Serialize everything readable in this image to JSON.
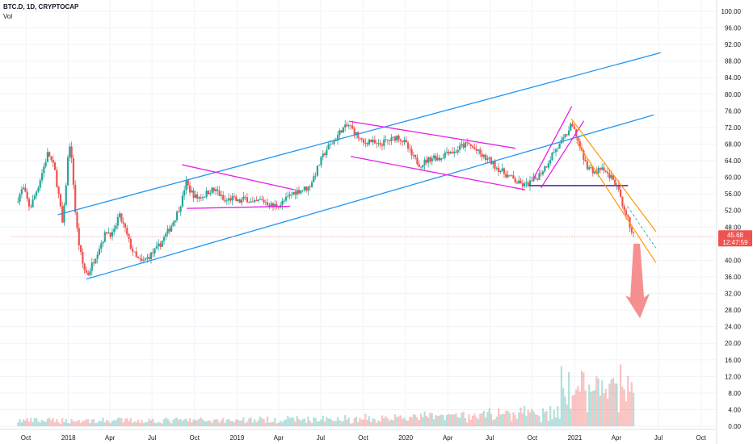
{
  "legend": {
    "symbol": "BTC.D, 1D, CRYPTOCAP",
    "volume_label": "Vol"
  },
  "price_tag": {
    "value": "45.68",
    "countdown": "12:47:59"
  },
  "colors": {
    "up": "#26a69a",
    "down": "#ef5350",
    "channel": "#2196f3",
    "pattern": "#e91ee8",
    "falling_channel": "#ff9800",
    "support": "#673ab7",
    "arrow": "#f47c7c",
    "price_tag": "#ef5350"
  },
  "chart_data": {
    "type": "candlestick",
    "title": "",
    "x_axis_labels": [
      "Oct",
      "2018",
      "Apr",
      "Jul",
      "Oct",
      "2019",
      "Apr",
      "Jul",
      "Oct",
      "2020",
      "Apr",
      "Jul",
      "Oct",
      "2021",
      "Apr",
      "Jul",
      "Oct"
    ],
    "x_axis_dates": [
      "2017-10-01",
      "2018-01-01",
      "2018-04-01",
      "2018-07-01",
      "2018-10-01",
      "2019-01-01",
      "2019-04-01",
      "2019-07-01",
      "2019-10-01",
      "2020-01-01",
      "2020-04-01",
      "2020-07-01",
      "2020-10-01",
      "2021-01-01",
      "2021-04-01",
      "2021-07-01",
      "2021-10-01"
    ],
    "y_axis_labels": [
      "100.00",
      "96.00",
      "92.00",
      "88.00",
      "84.00",
      "80.00",
      "76.00",
      "72.00",
      "68.00",
      "64.00",
      "60.00",
      "56.00",
      "52.00",
      "48.00",
      "44.00",
      "40.00",
      "36.00",
      "32.00",
      "28.00",
      "24.00",
      "20.00",
      "16.00",
      "12.00",
      "8.00",
      "4.00",
      "0.00"
    ],
    "y_range": [
      0,
      100
    ],
    "last_value": 45.68,
    "price_path": [
      [
        "2017-09-10",
        54.0
      ],
      [
        "2017-09-25",
        57.5
      ],
      [
        "2017-10-10",
        52.5
      ],
      [
        "2017-10-28",
        58.0
      ],
      [
        "2017-11-18",
        66.0
      ],
      [
        "2017-12-02",
        62.0
      ],
      [
        "2017-12-12",
        55.0
      ],
      [
        "2017-12-20",
        48.0
      ],
      [
        "2017-12-28",
        60.0
      ],
      [
        "2018-01-03",
        69.0
      ],
      [
        "2018-01-10",
        62.0
      ],
      [
        "2018-01-17",
        50.0
      ],
      [
        "2018-01-25",
        43.0
      ],
      [
        "2018-02-03",
        38.0
      ],
      [
        "2018-02-12",
        36.5
      ],
      [
        "2018-02-25",
        40.0
      ],
      [
        "2018-03-10",
        43.5
      ],
      [
        "2018-03-25",
        47.0
      ],
      [
        "2018-04-08",
        46.0
      ],
      [
        "2018-04-20",
        51.0
      ],
      [
        "2018-05-02",
        48.0
      ],
      [
        "2018-05-15",
        43.5
      ],
      [
        "2018-05-28",
        40.5
      ],
      [
        "2018-06-10",
        39.5
      ],
      [
        "2018-06-25",
        41.0
      ],
      [
        "2018-07-10",
        42.5
      ],
      [
        "2018-07-25",
        45.0
      ],
      [
        "2018-08-10",
        48.0
      ],
      [
        "2018-08-25",
        51.5
      ],
      [
        "2018-09-05",
        55.0
      ],
      [
        "2018-09-12",
        59.0
      ],
      [
        "2018-09-20",
        57.0
      ],
      [
        "2018-10-05",
        55.0
      ],
      [
        "2018-10-20",
        55.5
      ],
      [
        "2018-11-05",
        57.0
      ],
      [
        "2018-11-20",
        56.5
      ],
      [
        "2018-12-05",
        54.0
      ],
      [
        "2018-12-20",
        55.0
      ],
      [
        "2019-01-05",
        54.0
      ],
      [
        "2019-01-20",
        55.0
      ],
      [
        "2019-02-05",
        53.5
      ],
      [
        "2019-02-20",
        54.5
      ],
      [
        "2019-03-05",
        54.0
      ],
      [
        "2019-03-20",
        53.0
      ],
      [
        "2019-04-05",
        53.5
      ],
      [
        "2019-04-20",
        55.0
      ],
      [
        "2019-05-05",
        56.5
      ],
      [
        "2019-05-20",
        57.0
      ],
      [
        "2019-06-05",
        57.5
      ],
      [
        "2019-06-20",
        61.0
      ],
      [
        "2019-07-01",
        64.0
      ],
      [
        "2019-07-15",
        67.0
      ],
      [
        "2019-08-01",
        69.0
      ],
      [
        "2019-08-15",
        71.5
      ],
      [
        "2019-09-01",
        72.5
      ],
      [
        "2019-09-15",
        70.5
      ],
      [
        "2019-10-01",
        68.0
      ],
      [
        "2019-10-15",
        69.0
      ],
      [
        "2019-11-01",
        67.5
      ],
      [
        "2019-11-15",
        68.5
      ],
      [
        "2019-12-01",
        69.0
      ],
      [
        "2019-12-15",
        70.0
      ],
      [
        "2020-01-01",
        68.0
      ],
      [
        "2020-01-15",
        65.0
      ],
      [
        "2020-02-01",
        63.0
      ],
      [
        "2020-02-15",
        64.0
      ],
      [
        "2020-03-01",
        65.0
      ],
      [
        "2020-03-15",
        64.5
      ],
      [
        "2020-04-01",
        66.5
      ],
      [
        "2020-04-15",
        66.0
      ],
      [
        "2020-05-01",
        67.5
      ],
      [
        "2020-05-15",
        68.0
      ],
      [
        "2020-06-01",
        66.5
      ],
      [
        "2020-06-15",
        65.0
      ],
      [
        "2020-07-01",
        64.0
      ],
      [
        "2020-07-15",
        62.5
      ],
      [
        "2020-08-01",
        61.0
      ],
      [
        "2020-08-15",
        60.0
      ],
      [
        "2020-09-01",
        58.5
      ],
      [
        "2020-09-15",
        58.0
      ],
      [
        "2020-10-01",
        59.0
      ],
      [
        "2020-10-15",
        60.5
      ],
      [
        "2020-11-01",
        63.0
      ],
      [
        "2020-11-15",
        66.0
      ],
      [
        "2020-12-01",
        68.0
      ],
      [
        "2020-12-15",
        70.5
      ],
      [
        "2020-12-25",
        72.5
      ],
      [
        "2021-01-05",
        70.0
      ],
      [
        "2021-01-15",
        66.0
      ],
      [
        "2021-01-25",
        63.0
      ],
      [
        "2021-02-05",
        62.0
      ],
      [
        "2021-02-15",
        61.0
      ],
      [
        "2021-02-25",
        62.0
      ],
      [
        "2021-03-10",
        61.0
      ],
      [
        "2021-03-25",
        59.5
      ],
      [
        "2021-04-05",
        57.0
      ],
      [
        "2021-04-15",
        52.0
      ],
      [
        "2021-04-25",
        50.0
      ],
      [
        "2021-05-05",
        47.0
      ],
      [
        "2021-05-10",
        45.68
      ]
    ]
  }
}
